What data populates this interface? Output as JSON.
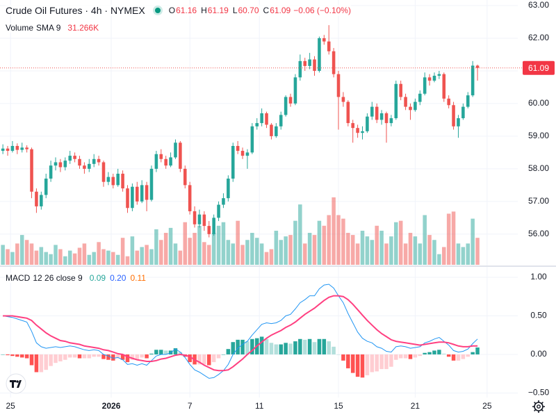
{
  "chart_data": [
    {
      "type": "candlestick",
      "title": "Crude Oil Futures · 4h · NYMEX",
      "ohlc_legend": [
        {
          "key": "O",
          "value": "61.16"
        },
        {
          "key": "H",
          "value": "61.19"
        },
        {
          "key": "L",
          "value": "60.70"
        },
        {
          "key": "C",
          "value": "61.09"
        }
      ],
      "change": "−0.06 (−0.10%)",
      "volume_legend": {
        "name": "Volume",
        "study": "SMA 9",
        "value": "31.266K"
      },
      "up_color": "#26a69a",
      "down_color": "#ef5350",
      "ylim": [
        55.06,
        63.17
      ],
      "yticks": [
        {
          "value": 56,
          "label": "56.00"
        },
        {
          "value": 57,
          "label": "57.00"
        },
        {
          "value": 58,
          "label": "58.00"
        },
        {
          "value": 59,
          "label": "59.00"
        },
        {
          "value": 60,
          "label": "60.00"
        },
        {
          "value": 61,
          "label": "61.00"
        },
        {
          "value": 62,
          "label": "62.00"
        },
        {
          "value": 63,
          "label": "63.00"
        }
      ],
      "last_price": {
        "value": 61.09,
        "label": "61.09"
      },
      "xlim": [
        -0.6,
        107.4
      ],
      "xticks": [
        {
          "value": 1.6,
          "label": "25"
        },
        {
          "value": 22.6,
          "label": "2026"
        },
        {
          "value": 39,
          "label": "7"
        },
        {
          "value": 53.5,
          "label": "11"
        },
        {
          "value": 70,
          "label": "15"
        },
        {
          "value": 86,
          "label": "21"
        },
        {
          "value": 101,
          "label": "25"
        }
      ],
      "grid": true,
      "volume_lim": [
        0,
        373
      ],
      "candles": [
        [
          58.55,
          58.75,
          58.45,
          58.62
        ],
        [
          58.62,
          58.7,
          58.4,
          58.55
        ],
        [
          58.55,
          58.85,
          58.5,
          58.7
        ],
        [
          58.7,
          58.78,
          58.45,
          58.58
        ],
        [
          58.58,
          58.8,
          58.5,
          58.65
        ],
        [
          58.65,
          58.72,
          58.5,
          58.6
        ],
        [
          58.6,
          58.65,
          57.1,
          57.3
        ],
        [
          57.3,
          57.4,
          56.65,
          56.85
        ],
        [
          56.85,
          57.3,
          56.75,
          57.2
        ],
        [
          57.2,
          57.85,
          57.1,
          57.7
        ],
        [
          57.7,
          58.25,
          57.6,
          58.1
        ],
        [
          58.1,
          58.35,
          57.95,
          58.2
        ],
        [
          58.2,
          58.3,
          57.9,
          58.05
        ],
        [
          58.05,
          58.35,
          57.95,
          58.25
        ],
        [
          58.25,
          58.55,
          58.15,
          58.4
        ],
        [
          58.4,
          58.5,
          58.2,
          58.3
        ],
        [
          58.3,
          58.4,
          58.0,
          58.1
        ],
        [
          58.1,
          58.2,
          57.85,
          58.0
        ],
        [
          58.0,
          58.3,
          57.9,
          58.15
        ],
        [
          58.15,
          58.45,
          58.05,
          58.3
        ],
        [
          58.3,
          58.4,
          58.1,
          58.2
        ],
        [
          58.2,
          58.25,
          57.45,
          57.6
        ],
        [
          57.6,
          57.9,
          57.5,
          57.75
        ],
        [
          57.75,
          57.85,
          57.4,
          57.5
        ],
        [
          57.5,
          58.0,
          57.45,
          57.85
        ],
        [
          57.85,
          57.95,
          57.3,
          57.4
        ],
        [
          57.4,
          57.5,
          56.65,
          56.8
        ],
        [
          56.8,
          57.55,
          56.7,
          57.45
        ],
        [
          57.45,
          57.6,
          56.9,
          57.0
        ],
        [
          57.0,
          57.65,
          56.95,
          57.5
        ],
        [
          57.5,
          57.6,
          56.7,
          57.05
        ],
        [
          57.05,
          58.1,
          57.0,
          58.0
        ],
        [
          58.0,
          58.55,
          57.9,
          58.45
        ],
        [
          58.45,
          58.6,
          58.2,
          58.3
        ],
        [
          58.3,
          58.4,
          58.0,
          58.1
        ],
        [
          58.1,
          58.5,
          58.05,
          58.35
        ],
        [
          58.35,
          58.9,
          58.3,
          58.8
        ],
        [
          58.8,
          58.85,
          57.9,
          58.0
        ],
        [
          58.0,
          58.1,
          57.4,
          57.5
        ],
        [
          57.5,
          57.6,
          56.6,
          56.7
        ],
        [
          56.7,
          56.85,
          56.2,
          56.3
        ],
        [
          56.3,
          56.75,
          56.2,
          56.6
        ],
        [
          56.6,
          56.7,
          56.1,
          56.25
        ],
        [
          56.25,
          56.4,
          55.9,
          56.0
        ],
        [
          56.0,
          56.6,
          55.95,
          56.5
        ],
        [
          56.5,
          57.0,
          56.4,
          56.9
        ],
        [
          56.9,
          57.25,
          56.8,
          57.1
        ],
        [
          57.1,
          57.8,
          57.0,
          57.7
        ],
        [
          57.7,
          58.8,
          57.6,
          58.7
        ],
        [
          58.7,
          58.85,
          58.45,
          58.55
        ],
        [
          58.55,
          58.65,
          58.3,
          58.4
        ],
        [
          58.4,
          58.6,
          58.0,
          58.5
        ],
        [
          58.5,
          59.4,
          58.45,
          59.3
        ],
        [
          59.3,
          59.55,
          59.2,
          59.4
        ],
        [
          59.4,
          59.85,
          59.3,
          59.7
        ],
        [
          59.7,
          59.75,
          59.25,
          59.35
        ],
        [
          59.35,
          59.4,
          58.9,
          59.0
        ],
        [
          59.0,
          59.4,
          58.95,
          59.3
        ],
        [
          59.3,
          59.75,
          59.2,
          59.65
        ],
        [
          59.65,
          60.25,
          59.6,
          60.2
        ],
        [
          60.2,
          60.3,
          59.9,
          60.0
        ],
        [
          60.0,
          60.9,
          59.95,
          60.8
        ],
        [
          60.8,
          61.5,
          60.7,
          61.3
        ],
        [
          61.3,
          61.4,
          61.0,
          61.15
        ],
        [
          61.15,
          61.55,
          61.05,
          61.35
        ],
        [
          61.35,
          61.45,
          60.85,
          61.0
        ],
        [
          61.0,
          62.05,
          60.95,
          62.0
        ],
        [
          62.0,
          62.1,
          61.8,
          61.9
        ],
        [
          61.9,
          62.4,
          61.5,
          61.6
        ],
        [
          61.6,
          61.7,
          60.8,
          60.9
        ],
        [
          60.9,
          61.0,
          59.2,
          60.2
        ],
        [
          60.2,
          60.35,
          59.9,
          60.05
        ],
        [
          60.05,
          60.1,
          59.3,
          59.4
        ],
        [
          59.4,
          59.5,
          58.8,
          59.25
        ],
        [
          59.25,
          59.35,
          58.95,
          59.1
        ],
        [
          59.1,
          59.3,
          58.9,
          59.15
        ],
        [
          59.15,
          59.7,
          59.1,
          59.6
        ],
        [
          59.6,
          60.05,
          59.5,
          59.9
        ],
        [
          59.9,
          60.0,
          59.4,
          59.5
        ],
        [
          59.5,
          59.8,
          59.35,
          59.7
        ],
        [
          59.7,
          59.75,
          58.8,
          59.4
        ],
        [
          59.4,
          59.65,
          59.3,
          59.55
        ],
        [
          59.55,
          60.7,
          59.5,
          60.6
        ],
        [
          60.6,
          60.7,
          60.1,
          60.2
        ],
        [
          60.2,
          60.3,
          59.8,
          59.9
        ],
        [
          59.9,
          60.0,
          59.5,
          59.8
        ],
        [
          59.8,
          60.15,
          59.75,
          60.05
        ],
        [
          60.05,
          60.4,
          59.95,
          60.3
        ],
        [
          60.3,
          60.95,
          60.25,
          60.8
        ],
        [
          60.8,
          60.9,
          60.55,
          60.7
        ],
        [
          60.7,
          60.95,
          60.65,
          60.85
        ],
        [
          60.85,
          61.0,
          60.75,
          60.9
        ],
        [
          60.9,
          60.95,
          60.05,
          60.15
        ],
        [
          60.15,
          60.25,
          59.85,
          59.95
        ],
        [
          59.95,
          60.05,
          59.2,
          59.3
        ],
        [
          59.3,
          59.65,
          58.95,
          59.55
        ],
        [
          59.55,
          60.0,
          59.5,
          59.9
        ],
        [
          59.9,
          60.35,
          59.85,
          60.25
        ],
        [
          60.25,
          61.3,
          60.2,
          61.16
        ],
        [
          61.16,
          61.19,
          60.7,
          61.09
        ]
      ],
      "volume": [
        28,
        22,
        18,
        30,
        42,
        35,
        30,
        20,
        25,
        18,
        15,
        28,
        22,
        12,
        20,
        16,
        24,
        30,
        14,
        18,
        32,
        22,
        20,
        18,
        14,
        38,
        12,
        40,
        20,
        25,
        28,
        22,
        50,
        35,
        45,
        52,
        30,
        20,
        60,
        38,
        45,
        55,
        32,
        28,
        45,
        55,
        60,
        35,
        30,
        62,
        28,
        35,
        45,
        38,
        30,
        18,
        22,
        48,
        35,
        40,
        42,
        62,
        85,
        30,
        45,
        42,
        62,
        55,
        70,
        95,
        70,
        65,
        45,
        42,
        30,
        48,
        40,
        35,
        55,
        48,
        30,
        40,
        60,
        62,
        30,
        45,
        40,
        30,
        70,
        42,
        35,
        15,
        25,
        72,
        75,
        30,
        25,
        30,
        65,
        38
      ]
    },
    {
      "type": "macd",
      "legend": {
        "name": "MACD",
        "params": "12 26 close 9",
        "values": [
          {
            "text": "0.09",
            "color": "#26a69a"
          },
          {
            "text": "0.20",
            "color": "#2962ff"
          },
          {
            "text": "0.11",
            "color": "#ff6d00"
          }
        ]
      },
      "macd_color": "#2196f3",
      "signal_color": "#ff4081",
      "hist_colors": [
        "#26a69a",
        "#b2dfdb",
        "#ff5252",
        "#ffcdd2"
      ],
      "ylim": [
        -0.559,
        1.126
      ],
      "yticks": [
        {
          "value": -0.5,
          "label": "−0.50"
        },
        {
          "value": 0,
          "label": "0.00"
        },
        {
          "value": 0.5,
          "label": "0.50"
        },
        {
          "value": 1,
          "label": "1.00"
        }
      ],
      "macd": [
        0.5,
        0.49,
        0.48,
        0.46,
        0.44,
        0.42,
        0.3,
        0.15,
        0.1,
        0.08,
        0.09,
        0.1,
        0.09,
        0.1,
        0.11,
        0.1,
        0.08,
        0.06,
        0.05,
        0.06,
        0.05,
        0.0,
        -0.02,
        -0.05,
        -0.04,
        -0.07,
        -0.13,
        -0.12,
        -0.14,
        -0.12,
        -0.14,
        -0.08,
        -0.02,
        0.0,
        0.0,
        0.02,
        0.07,
        0.03,
        -0.04,
        -0.13,
        -0.2,
        -0.23,
        -0.27,
        -0.31,
        -0.3,
        -0.26,
        -0.21,
        -0.13,
        0.0,
        0.08,
        0.13,
        0.17,
        0.25,
        0.32,
        0.39,
        0.41,
        0.4,
        0.41,
        0.44,
        0.5,
        0.52,
        0.59,
        0.67,
        0.71,
        0.76,
        0.76,
        0.85,
        0.9,
        0.91,
        0.86,
        0.76,
        0.67,
        0.53,
        0.41,
        0.29,
        0.21,
        0.17,
        0.15,
        0.1,
        0.08,
        0.04,
        0.03,
        0.1,
        0.11,
        0.1,
        0.08,
        0.09,
        0.1,
        0.15,
        0.17,
        0.2,
        0.22,
        0.17,
        0.12,
        0.05,
        0.03,
        0.04,
        0.07,
        0.14,
        0.2
      ],
      "signal": [
        0.5,
        0.5,
        0.5,
        0.49,
        0.48,
        0.47,
        0.44,
        0.38,
        0.33,
        0.28,
        0.24,
        0.21,
        0.18,
        0.17,
        0.15,
        0.14,
        0.13,
        0.11,
        0.1,
        0.09,
        0.08,
        0.06,
        0.05,
        0.03,
        0.01,
        0.0,
        -0.03,
        -0.05,
        -0.07,
        -0.08,
        -0.09,
        -0.09,
        -0.08,
        -0.06,
        -0.05,
        -0.03,
        -0.01,
        0.0,
        -0.01,
        -0.03,
        -0.07,
        -0.1,
        -0.14,
        -0.17,
        -0.2,
        -0.21,
        -0.21,
        -0.2,
        -0.16,
        -0.11,
        -0.06,
        0.0,
        0.05,
        0.11,
        0.16,
        0.21,
        0.25,
        0.28,
        0.31,
        0.35,
        0.38,
        0.42,
        0.47,
        0.52,
        0.56,
        0.6,
        0.65,
        0.7,
        0.74,
        0.76,
        0.76,
        0.75,
        0.71,
        0.65,
        0.58,
        0.51,
        0.44,
        0.38,
        0.32,
        0.27,
        0.23,
        0.19,
        0.17,
        0.16,
        0.15,
        0.14,
        0.13,
        0.12,
        0.13,
        0.14,
        0.15,
        0.16,
        0.16,
        0.15,
        0.13,
        0.11,
        0.1,
        0.1,
        0.11,
        0.11
      ],
      "histogram": [
        0.0,
        -0.01,
        -0.02,
        -0.03,
        -0.04,
        -0.05,
        -0.14,
        -0.23,
        -0.23,
        -0.2,
        -0.15,
        -0.11,
        -0.09,
        -0.07,
        -0.04,
        -0.04,
        -0.05,
        -0.05,
        -0.05,
        -0.03,
        -0.03,
        -0.06,
        -0.07,
        -0.08,
        -0.05,
        -0.07,
        -0.1,
        -0.07,
        -0.07,
        -0.04,
        -0.05,
        0.01,
        0.06,
        0.06,
        0.05,
        0.05,
        0.08,
        0.03,
        -0.03,
        -0.1,
        -0.13,
        -0.13,
        -0.13,
        -0.14,
        -0.1,
        -0.05,
        0.0,
        0.07,
        0.16,
        0.19,
        0.19,
        0.17,
        0.2,
        0.21,
        0.23,
        0.2,
        0.15,
        0.13,
        0.13,
        0.15,
        0.14,
        0.17,
        0.2,
        0.19,
        0.2,
        0.16,
        0.2,
        0.2,
        0.17,
        0.1,
        0.0,
        -0.08,
        -0.18,
        -0.24,
        -0.29,
        -0.3,
        -0.27,
        -0.23,
        -0.22,
        -0.19,
        -0.19,
        -0.16,
        -0.07,
        -0.05,
        -0.05,
        -0.06,
        -0.04,
        -0.02,
        0.02,
        0.03,
        0.05,
        0.06,
        0.01,
        -0.03,
        -0.08,
        -0.08,
        -0.06,
        -0.03,
        0.03,
        0.09
      ]
    }
  ]
}
